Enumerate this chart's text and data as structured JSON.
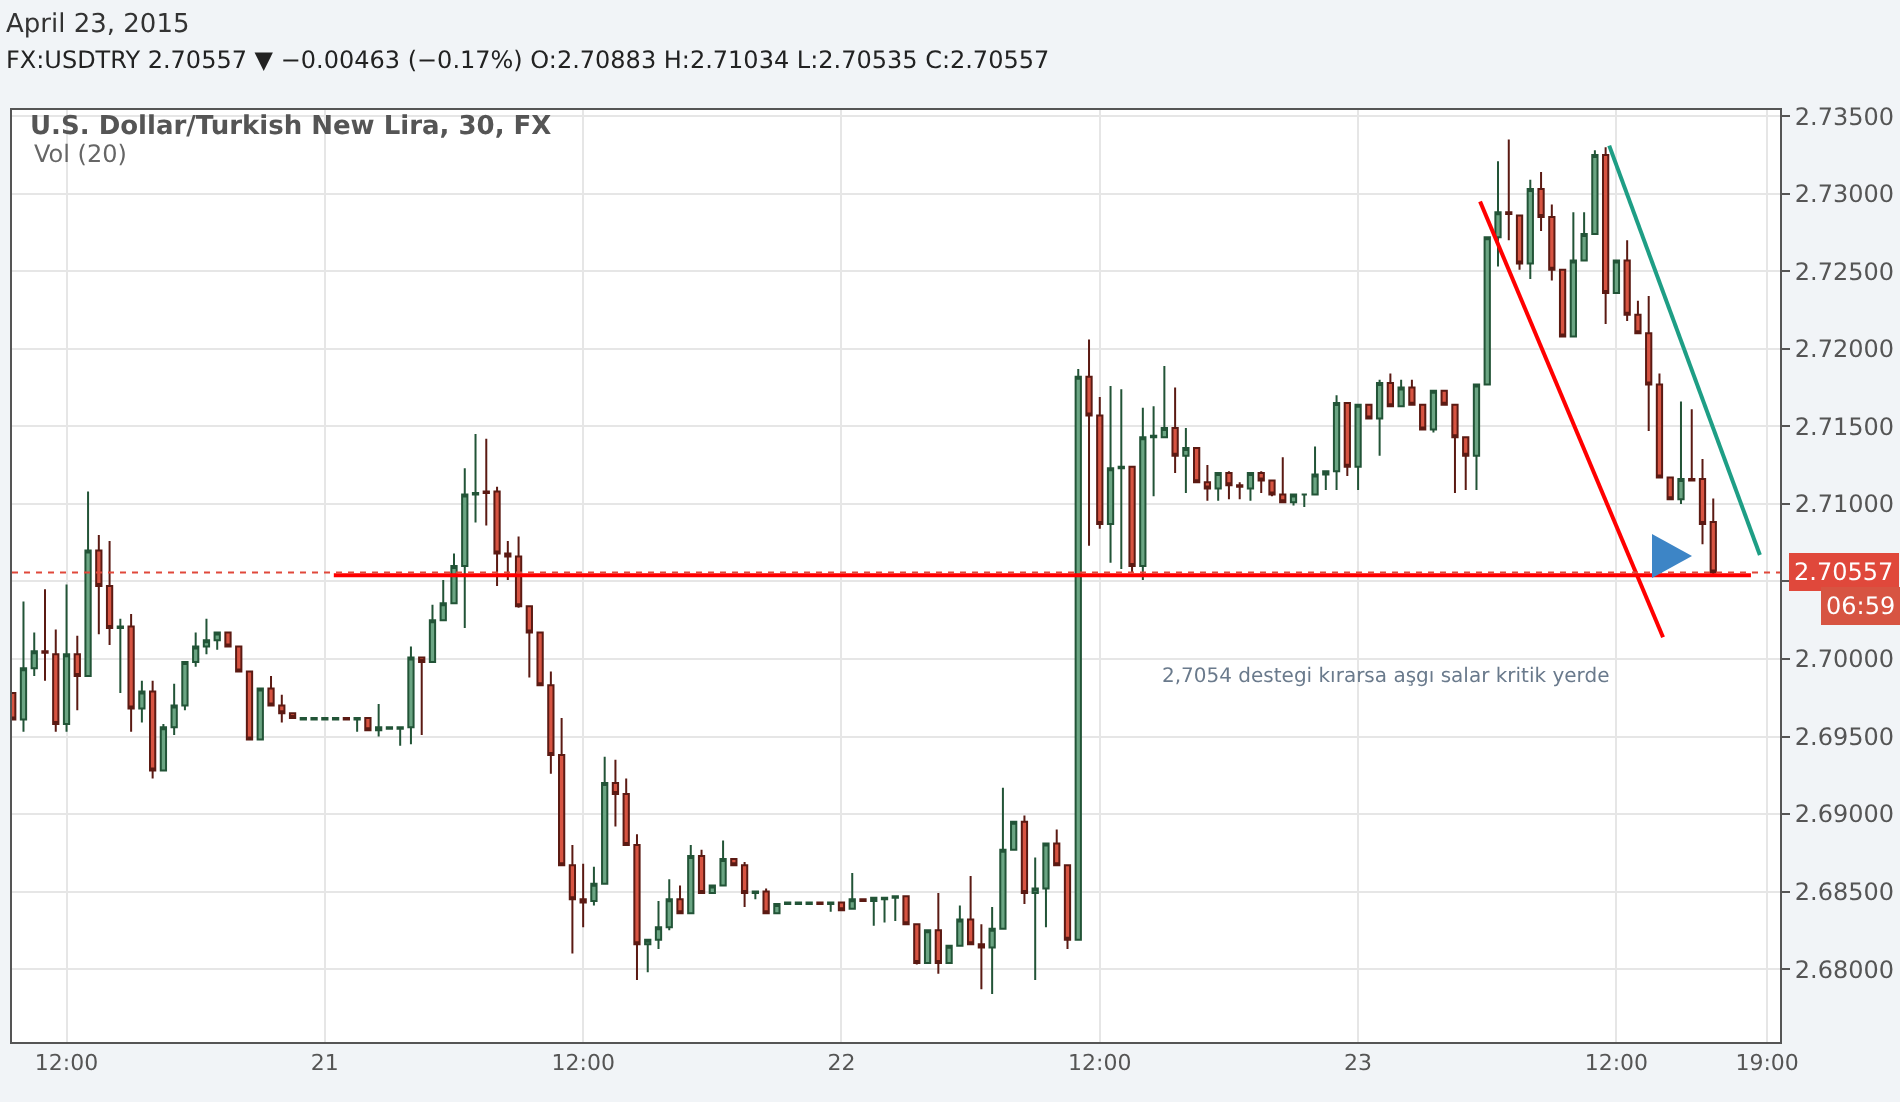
{
  "chart_data": {
    "type": "candlestick",
    "title": "U.S. Dollar/Turkish New Lira, 30, FX",
    "subtitle": "Vol (20)",
    "annotations": [
      "April 23, 2015",
      "FX:USDTRY 2.70557 ▼ −0.00463 (−0.17%) O:2.70883 H:2.71034 L:2.70535 C:2.70557",
      "2,7054 destegi kırarsa aşgı salar kritik yerde",
      "06:59"
    ],
    "x": [
      "2015-04-20T09:30",
      "2015-04-20T10:00",
      "2015-04-20T10:30",
      "2015-04-20T11:00",
      "2015-04-20T11:30",
      "2015-04-20T12:00",
      "2015-04-20T12:30",
      "2015-04-20T13:00",
      "2015-04-20T13:30",
      "2015-04-20T14:00",
      "2015-04-20T14:30",
      "2015-04-20T15:00",
      "2015-04-20T15:30",
      "2015-04-20T16:00",
      "2015-04-20T16:30",
      "2015-04-20T17:00",
      "2015-04-20T17:30",
      "2015-04-20T18:00",
      "2015-04-20T18:30",
      "2015-04-20T19:00",
      "2015-04-20T19:30",
      "2015-04-20T20:00",
      "2015-04-20T20:30",
      "2015-04-20T21:00",
      "2015-04-20T21:30",
      "2015-04-20T22:00",
      "2015-04-20T22:30",
      "2015-04-20T23:00",
      "2015-04-20T23:30",
      "2015-04-21T00:00",
      "2015-04-21T00:30",
      "2015-04-21T01:00",
      "2015-04-21T01:30",
      "2015-04-21T02:00",
      "2015-04-21T02:30",
      "2015-04-21T03:00",
      "2015-04-21T03:30",
      "2015-04-21T04:00",
      "2015-04-21T04:30",
      "2015-04-21T05:00",
      "2015-04-21T05:30",
      "2015-04-21T06:00",
      "2015-04-21T06:30",
      "2015-04-21T07:00",
      "2015-04-21T07:30",
      "2015-04-21T08:00",
      "2015-04-21T08:30",
      "2015-04-21T09:00",
      "2015-04-21T09:30",
      "2015-04-21T10:00",
      "2015-04-21T10:30",
      "2015-04-21T11:00",
      "2015-04-21T11:30",
      "2015-04-21T12:00",
      "2015-04-21T12:30",
      "2015-04-21T13:00",
      "2015-04-21T13:30",
      "2015-04-21T14:00",
      "2015-04-21T14:30",
      "2015-04-21T15:00",
      "2015-04-21T15:30",
      "2015-04-21T16:00",
      "2015-04-21T16:30",
      "2015-04-21T17:00",
      "2015-04-21T17:30",
      "2015-04-21T18:00",
      "2015-04-21T18:30",
      "2015-04-21T19:00",
      "2015-04-21T19:30",
      "2015-04-21T20:00",
      "2015-04-21T20:30",
      "2015-04-21T21:00",
      "2015-04-21T21:30",
      "2015-04-21T22:00",
      "2015-04-21T22:30",
      "2015-04-21T23:00",
      "2015-04-21T23:30",
      "2015-04-22T00:00",
      "2015-04-22T00:30",
      "2015-04-22T01:00",
      "2015-04-22T01:30",
      "2015-04-22T02:00",
      "2015-04-22T02:30",
      "2015-04-22T03:00",
      "2015-04-22T03:30",
      "2015-04-22T04:00",
      "2015-04-22T04:30",
      "2015-04-22T05:00",
      "2015-04-22T05:30",
      "2015-04-22T06:00",
      "2015-04-22T06:30",
      "2015-04-22T07:00",
      "2015-04-22T07:30",
      "2015-04-22T08:00",
      "2015-04-22T08:30",
      "2015-04-22T09:00",
      "2015-04-22T09:30",
      "2015-04-22T10:00",
      "2015-04-22T10:30",
      "2015-04-22T11:00",
      "2015-04-22T11:30",
      "2015-04-22T12:00",
      "2015-04-22T12:30",
      "2015-04-22T13:00",
      "2015-04-22T13:30",
      "2015-04-22T14:00",
      "2015-04-22T14:30",
      "2015-04-22T15:00",
      "2015-04-22T15:30",
      "2015-04-22T16:00",
      "2015-04-22T16:30",
      "2015-04-22T17:00",
      "2015-04-22T17:30",
      "2015-04-22T18:00",
      "2015-04-22T18:30",
      "2015-04-22T19:00",
      "2015-04-22T19:30",
      "2015-04-22T20:00",
      "2015-04-22T20:30",
      "2015-04-22T21:00",
      "2015-04-22T21:30",
      "2015-04-22T22:00",
      "2015-04-22T22:30",
      "2015-04-22T23:00",
      "2015-04-22T23:30",
      "2015-04-23T00:00",
      "2015-04-23T00:30",
      "2015-04-23T01:00",
      "2015-04-23T01:30",
      "2015-04-23T02:00",
      "2015-04-23T02:30",
      "2015-04-23T03:00",
      "2015-04-23T03:30",
      "2015-04-23T04:00",
      "2015-04-23T04:30",
      "2015-04-23T05:00",
      "2015-04-23T05:30",
      "2015-04-23T06:00",
      "2015-04-23T06:30",
      "2015-04-23T07:00",
      "2015-04-23T07:30",
      "2015-04-23T08:00",
      "2015-04-23T08:30",
      "2015-04-23T09:00",
      "2015-04-23T09:30",
      "2015-04-23T10:00",
      "2015-04-23T10:30",
      "2015-04-23T11:00",
      "2015-04-23T11:30",
      "2015-04-23T12:00",
      "2015-04-23T12:30",
      "2015-04-23T13:00",
      "2015-04-23T13:30",
      "2015-04-23T14:00",
      "2015-04-23T14:30",
      "2015-04-23T15:00",
      "2015-04-23T15:30",
      "2015-04-23T16:00",
      "2015-04-23T16:30"
    ],
    "ohlc": [
      [
        2.6978,
        2.6978,
        2.6961,
        2.6961
      ],
      [
        2.6961,
        2.7037,
        2.6953,
        2.6994
      ],
      [
        2.6994,
        2.7017,
        2.6989,
        2.7005
      ],
      [
        2.7005,
        2.7045,
        2.6986,
        2.7004
      ],
      [
        2.7003,
        2.7019,
        2.6953,
        2.6958
      ],
      [
        2.6958,
        2.7048,
        2.6953,
        2.7003
      ],
      [
        2.7003,
        2.7015,
        2.6967,
        2.6989
      ],
      [
        2.6989,
        2.7108,
        2.6989,
        2.707
      ],
      [
        2.707,
        2.708,
        2.7016,
        2.7047
      ],
      [
        2.7047,
        2.7076,
        2.7009,
        2.702
      ],
      [
        2.702,
        2.7026,
        2.6978,
        2.7021
      ],
      [
        2.7021,
        2.7029,
        2.6953,
        2.6968
      ],
      [
        2.6968,
        2.6986,
        2.6959,
        2.6979
      ],
      [
        2.6979,
        2.6986,
        2.6923,
        2.6928
      ],
      [
        2.6928,
        2.6958,
        2.6928,
        2.6956
      ],
      [
        2.6956,
        2.6984,
        2.6951,
        2.697
      ],
      [
        2.697,
        2.6998,
        2.6967,
        2.6998
      ],
      [
        2.6998,
        2.7017,
        2.6995,
        2.7008
      ],
      [
        2.7008,
        2.7026,
        2.7003,
        2.7012
      ],
      [
        2.7012,
        2.7017,
        2.7006,
        2.7017
      ],
      [
        2.7017,
        2.7017,
        2.7008,
        2.7008
      ],
      [
        2.7008,
        2.7008,
        2.6992,
        2.6992
      ],
      [
        2.6992,
        2.6992,
        2.6948,
        2.6948
      ],
      [
        2.6948,
        2.6981,
        2.6948,
        2.6981
      ],
      [
        2.6981,
        2.6989,
        2.697,
        2.697
      ],
      [
        2.697,
        2.6977,
        2.6959,
        2.6965
      ],
      [
        2.6965,
        2.6965,
        2.6962,
        2.6962
      ],
      [
        2.6961,
        2.6962,
        2.6961,
        2.6962
      ],
      [
        2.6961,
        2.6962,
        2.6961,
        2.6962
      ],
      [
        2.6961,
        2.6962,
        2.6961,
        2.6962
      ],
      [
        2.6961,
        2.6962,
        2.6961,
        2.6962
      ],
      [
        2.6962,
        2.6962,
        2.6961,
        2.6961
      ],
      [
        2.6961,
        2.6962,
        2.6953,
        2.6962
      ],
      [
        2.6962,
        2.6962,
        2.6954,
        2.6954
      ],
      [
        2.6954,
        2.6971,
        2.695,
        2.6956
      ],
      [
        2.6955,
        2.6956,
        2.6955,
        2.6956
      ],
      [
        2.6955,
        2.6956,
        2.6944,
        2.6956
      ],
      [
        2.6956,
        2.7008,
        2.6945,
        2.7001
      ],
      [
        2.7001,
        2.7001,
        2.6951,
        2.6998
      ],
      [
        2.6998,
        2.7035,
        2.6998,
        2.7025
      ],
      [
        2.7025,
        2.7051,
        2.7025,
        2.7036
      ],
      [
        2.7036,
        2.7068,
        2.7036,
        2.706
      ],
      [
        2.706,
        2.7123,
        2.702,
        2.7106
      ],
      [
        2.7106,
        2.7145,
        2.7088,
        2.7107
      ],
      [
        2.7108,
        2.7142,
        2.7086,
        2.7107
      ],
      [
        2.7108,
        2.7111,
        2.7047,
        2.7068
      ],
      [
        2.7068,
        2.7076,
        2.7051,
        2.7066
      ],
      [
        2.7066,
        2.7079,
        2.7033,
        2.7034
      ],
      [
        2.7034,
        2.7034,
        2.6988,
        2.7017
      ],
      [
        2.7017,
        2.7017,
        2.6983,
        2.6983
      ],
      [
        2.6983,
        2.6992,
        2.6926,
        2.6938
      ],
      [
        2.6938,
        2.6962,
        2.6867,
        2.6867
      ],
      [
        2.6867,
        2.688,
        2.681,
        2.6845
      ],
      [
        2.6845,
        2.6868,
        2.6827,
        2.6843
      ],
      [
        2.6844,
        2.6866,
        2.6841,
        2.6855
      ],
      [
        2.6855,
        2.6937,
        2.6855,
        2.692
      ],
      [
        2.692,
        2.6935,
        2.6892,
        2.6913
      ],
      [
        2.6913,
        2.6923,
        2.688,
        2.688
      ],
      [
        2.688,
        2.6887,
        2.6793,
        2.6816
      ],
      [
        2.6816,
        2.6819,
        2.6798,
        2.6819
      ],
      [
        2.6819,
        2.6844,
        2.6813,
        2.6827
      ],
      [
        2.6827,
        2.6858,
        2.6825,
        2.6845
      ],
      [
        2.6845,
        2.6854,
        2.6836,
        2.6836
      ],
      [
        2.6836,
        2.688,
        2.6836,
        2.6873
      ],
      [
        2.6873,
        2.6877,
        2.6849,
        2.6849
      ],
      [
        2.6849,
        2.6854,
        2.6849,
        2.6854
      ],
      [
        2.6854,
        2.6883,
        2.6854,
        2.6871
      ],
      [
        2.6871,
        2.6871,
        2.6867,
        2.6867
      ],
      [
        2.6867,
        2.6869,
        2.684,
        2.6849
      ],
      [
        2.6849,
        2.685,
        2.6845,
        2.685
      ],
      [
        2.685,
        2.6852,
        2.6836,
        2.6836
      ],
      [
        2.6836,
        2.6842,
        2.6836,
        2.6842
      ],
      [
        2.6842,
        2.6843,
        2.6842,
        2.6843
      ],
      [
        2.6842,
        2.6843,
        2.6842,
        2.6843
      ],
      [
        2.6842,
        2.6843,
        2.6842,
        2.6843
      ],
      [
        2.6843,
        2.6843,
        2.6842,
        2.6842
      ],
      [
        2.6842,
        2.6843,
        2.6837,
        2.6843
      ],
      [
        2.6843,
        2.6843,
        2.6838,
        2.6838
      ],
      [
        2.6839,
        2.6862,
        2.6839,
        2.6845
      ],
      [
        2.6845,
        2.6845,
        2.6844,
        2.6844
      ],
      [
        2.6844,
        2.6846,
        2.6828,
        2.6846
      ],
      [
        2.6845,
        2.6846,
        2.683,
        2.6846
      ],
      [
        2.6846,
        2.6847,
        2.6831,
        2.6847
      ],
      [
        2.6847,
        2.6847,
        2.6829,
        2.6829
      ],
      [
        2.6829,
        2.6829,
        2.6803,
        2.6804
      ],
      [
        2.6804,
        2.6825,
        2.6804,
        2.6825
      ],
      [
        2.6825,
        2.6849,
        2.6797,
        2.6804
      ],
      [
        2.6804,
        2.6815,
        2.6804,
        2.6815
      ],
      [
        2.6815,
        2.6841,
        2.6815,
        2.6832
      ],
      [
        2.6832,
        2.686,
        2.6816,
        2.6816
      ],
      [
        2.6816,
        2.6829,
        2.6787,
        2.6814
      ],
      [
        2.6814,
        2.684,
        2.6784,
        2.6826
      ],
      [
        2.6826,
        2.6917,
        2.6826,
        2.6877
      ],
      [
        2.6877,
        2.6895,
        2.6877,
        2.6895
      ],
      [
        2.6895,
        2.6899,
        2.6842,
        2.6849
      ],
      [
        2.6849,
        2.6872,
        2.6793,
        2.6852
      ],
      [
        2.6852,
        2.6881,
        2.6827,
        2.6881
      ],
      [
        2.6881,
        2.689,
        2.6867,
        2.6867
      ],
      [
        2.6867,
        2.6867,
        2.6813,
        2.6819
      ],
      [
        2.6819,
        2.7187,
        2.6819,
        2.7182
      ],
      [
        2.7182,
        2.7206,
        2.7073,
        2.7157
      ],
      [
        2.7157,
        2.7169,
        2.7084,
        2.7087
      ],
      [
        2.7087,
        2.7176,
        2.7062,
        2.7123
      ],
      [
        2.7123,
        2.7174,
        2.7058,
        2.7124
      ],
      [
        2.7124,
        2.7124,
        2.7056,
        2.706
      ],
      [
        2.706,
        2.7162,
        2.7051,
        2.7143
      ],
      [
        2.7143,
        2.7163,
        2.7105,
        2.7144
      ],
      [
        2.7143,
        2.7189,
        2.7143,
        2.7149
      ],
      [
        2.7149,
        2.7175,
        2.712,
        2.7131
      ],
      [
        2.7131,
        2.7149,
        2.7107,
        2.7136
      ],
      [
        2.7136,
        2.7136,
        2.7114,
        2.7114
      ],
      [
        2.7114,
        2.7125,
        2.7102,
        2.711
      ],
      [
        2.711,
        2.712,
        2.7102,
        2.712
      ],
      [
        2.712,
        2.7121,
        2.7103,
        2.7112
      ],
      [
        2.7112,
        2.7114,
        2.7103,
        2.7111
      ],
      [
        2.711,
        2.712,
        2.7102,
        2.712
      ],
      [
        2.712,
        2.7121,
        2.7107,
        2.7115
      ],
      [
        2.7115,
        2.7115,
        2.7105,
        2.7106
      ],
      [
        2.7106,
        2.713,
        2.7101,
        2.7101
      ],
      [
        2.7101,
        2.7106,
        2.7099,
        2.7106
      ],
      [
        2.7106,
        2.7106,
        2.7098,
        2.7106
      ],
      [
        2.7106,
        2.7137,
        2.7106,
        2.7119
      ],
      [
        2.7119,
        2.7121,
        2.7109,
        2.7121
      ],
      [
        2.7121,
        2.717,
        2.7109,
        2.7165
      ],
      [
        2.7165,
        2.7165,
        2.7118,
        2.7124
      ],
      [
        2.7124,
        2.7164,
        2.7109,
        2.7164
      ],
      [
        2.7164,
        2.7164,
        2.7155,
        2.7155
      ],
      [
        2.7155,
        2.718,
        2.7131,
        2.7178
      ],
      [
        2.7178,
        2.7184,
        2.7163,
        2.7163
      ],
      [
        2.7163,
        2.718,
        2.7163,
        2.7175
      ],
      [
        2.7175,
        2.718,
        2.7164,
        2.7164
      ],
      [
        2.7164,
        2.7164,
        2.7148,
        2.7148
      ],
      [
        2.7148,
        2.7173,
        2.7146,
        2.7173
      ],
      [
        2.7173,
        2.7173,
        2.7164,
        2.7164
      ],
      [
        2.7164,
        2.7164,
        2.7107,
        2.7143
      ],
      [
        2.7143,
        2.7143,
        2.7109,
        2.7131
      ],
      [
        2.7131,
        2.7177,
        2.7109,
        2.7177
      ],
      [
        2.7177,
        2.7272,
        2.7177,
        2.7272
      ],
      [
        2.7272,
        2.7321,
        2.7253,
        2.7288
      ],
      [
        2.7288,
        2.7335,
        2.727,
        2.7287
      ],
      [
        2.7286,
        2.7286,
        2.7251,
        2.7255
      ],
      [
        2.7255,
        2.7309,
        2.7245,
        2.7303
      ],
      [
        2.7303,
        2.7314,
        2.7276,
        2.7285
      ],
      [
        2.7285,
        2.7293,
        2.7244,
        2.7251
      ],
      [
        2.7251,
        2.7251,
        2.7208,
        2.7208
      ],
      [
        2.7208,
        2.7288,
        2.7208,
        2.7257
      ],
      [
        2.7257,
        2.7288,
        2.7257,
        2.7274
      ],
      [
        2.7274,
        2.7328,
        2.7274,
        2.7325
      ],
      [
        2.7325,
        2.733,
        2.7216,
        2.7236
      ],
      [
        2.7236,
        2.7257,
        2.7236,
        2.7257
      ],
      [
        2.7257,
        2.727,
        2.7218,
        2.7222
      ],
      [
        2.7222,
        2.7231,
        2.721,
        2.721
      ],
      [
        2.721,
        2.7234,
        2.7147,
        2.7177
      ],
      [
        2.7177,
        2.7184,
        2.7117,
        2.7117
      ],
      [
        2.7117,
        2.7117,
        2.7103,
        2.7103
      ],
      [
        2.7103,
        2.7166,
        2.71,
        2.7116
      ],
      [
        2.7116,
        2.7161,
        2.7115,
        2.7115
      ],
      [
        2.7116,
        2.7129,
        2.7074,
        2.7087
      ],
      [
        2.70883,
        2.71034,
        2.70535,
        2.70557
      ]
    ],
    "series": [
      {
        "type": "line",
        "color": "#ff0000",
        "x": [
          "2015-04-21T00:25",
          "2015-04-23T18:15"
        ],
        "values": [
          2.7054,
          2.7054
        ]
      },
      {
        "type": "line",
        "color": "#ff0000",
        "x": [
          "2015-04-23T05:40",
          "2015-04-23T14:10"
        ],
        "values": [
          2.7295,
          2.7014
        ]
      },
      {
        "type": "line",
        "color": "#1e9e85",
        "x": [
          "2015-04-23T11:40",
          "2015-04-23T18:40"
        ],
        "values": [
          2.7331,
          2.7067
        ]
      }
    ],
    "ref_lines": [
      {
        "axis": "y",
        "value": 2.70557,
        "label": "2.70557",
        "color": "#e0483b",
        "line_style": "dotted"
      }
    ],
    "xlim": [
      "2015-04-20T09:28",
      "2015-04-23T19:36"
    ],
    "xticks": [
      {
        "value": "2015-04-20T12:00",
        "label": "12:00"
      },
      {
        "value": "2015-04-21",
        "label": "21"
      },
      {
        "value": "2015-04-21T12:00",
        "label": "12:00"
      },
      {
        "value": "2015-04-22",
        "label": "22"
      },
      {
        "value": "2015-04-22T12:00",
        "label": "12:00"
      },
      {
        "value": "2015-04-23",
        "label": "23"
      },
      {
        "value": "2015-04-23T12:00",
        "label": "12:00"
      },
      {
        "value": "2015-04-23T19:00",
        "label": "19:00"
      }
    ],
    "ylim": [
      2.6753,
      2.7354
    ],
    "yticks": [
      {
        "value": 2.68,
        "label": "2.68000"
      },
      {
        "value": 2.685,
        "label": "2.68500"
      },
      {
        "value": 2.69,
        "label": "2.69000"
      },
      {
        "value": 2.695,
        "label": "2.69500"
      },
      {
        "value": 2.7,
        "label": "2.70000"
      },
      {
        "value": 2.705,
        "label": null
      },
      {
        "value": 2.71,
        "label": "2.71000"
      },
      {
        "value": 2.715,
        "label": "2.71500"
      },
      {
        "value": 2.72,
        "label": "2.72000"
      },
      {
        "value": 2.725,
        "label": "2.72500"
      },
      {
        "value": 2.73,
        "label": "2.73000"
      },
      {
        "value": 2.735,
        "label": "2.73500"
      }
    ],
    "grid": true
  }
}
